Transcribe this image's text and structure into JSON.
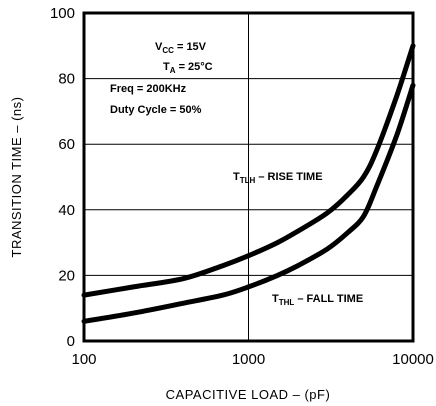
{
  "chart_data": {
    "type": "line",
    "xlabel": "CAPACITIVE LOAD – (pF)",
    "ylabel": "TRANSITION TIME – (ns)",
    "x_scale": "log",
    "xlim": [
      100,
      10000
    ],
    "ylim": [
      0,
      100
    ],
    "x_ticks": [
      100,
      1000,
      10000
    ],
    "x_tick_labels": [
      "100",
      "1000",
      "10000"
    ],
    "y_ticks": [
      0,
      20,
      40,
      60,
      80,
      100
    ],
    "y_tick_labels": [
      "0",
      "20",
      "40",
      "60",
      "80",
      "100"
    ],
    "grid": true,
    "conditions": [
      {
        "main": "V",
        "sub": "CC",
        "rest": " = 15V"
      },
      {
        "main": "T",
        "sub": "A",
        "rest": " = 25°C"
      },
      {
        "main": "Freq = 200KHz",
        "sub": "",
        "rest": ""
      },
      {
        "main": "Duty Cycle = 50%",
        "sub": "",
        "rest": ""
      }
    ],
    "series": [
      {
        "label_main": "T",
        "label_sub": "TLH",
        "label_rest": " – RISE TIME",
        "x": [
          100,
          200,
          400,
          700,
          1000,
          1500,
          2000,
          3000,
          4000,
          5000,
          6000,
          8000,
          10000
        ],
        "y": [
          14,
          16.5,
          19,
          23,
          26,
          30,
          33.5,
          39,
          44.5,
          50,
          58,
          75,
          90
        ]
      },
      {
        "label_main": "T",
        "label_sub": "THL",
        "label_rest": " – FALL TIME",
        "x": [
          100,
          200,
          400,
          700,
          1000,
          1500,
          2000,
          3000,
          4000,
          5000,
          6000,
          8000,
          10000
        ],
        "y": [
          6,
          8.5,
          11.5,
          14,
          16.5,
          20,
          23,
          28,
          33,
          38,
          47,
          63,
          78
        ]
      }
    ]
  }
}
